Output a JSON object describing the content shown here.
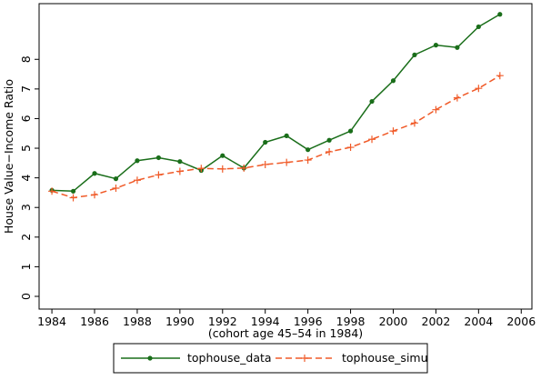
{
  "chart_data": {
    "type": "line",
    "y_label": "House Value−Income Ratio",
    "x_label": "(cohort age 45–54 in 1984)",
    "x": [
      1984,
      1985,
      1986,
      1987,
      1988,
      1989,
      1990,
      1991,
      1992,
      1993,
      1994,
      1995,
      1996,
      1997,
      1998,
      1999,
      2000,
      2001,
      2002,
      2003,
      2004,
      2005
    ],
    "series": [
      {
        "name": "tophouse_data",
        "color": "#1a6e1a",
        "marker": "circle",
        "dash": false,
        "values": [
          3.58,
          3.55,
          4.15,
          3.97,
          4.58,
          4.68,
          4.55,
          4.25,
          4.75,
          4.33,
          5.2,
          5.42,
          4.95,
          5.27,
          5.58,
          6.58,
          7.28,
          8.15,
          8.48,
          8.4,
          9.1,
          9.52
        ]
      },
      {
        "name": "tophouse_simu",
        "color": "#f05a28",
        "marker": "plus",
        "dash": true,
        "values": [
          3.55,
          3.33,
          3.43,
          3.65,
          3.92,
          4.1,
          4.22,
          4.32,
          4.3,
          4.33,
          4.45,
          4.52,
          4.6,
          4.88,
          5.03,
          5.3,
          5.58,
          5.85,
          6.3,
          6.7,
          7.02,
          7.45
        ]
      }
    ],
    "xlim": [
      1983.4,
      2006.5
    ],
    "xticks": [
      1984,
      1986,
      1988,
      1990,
      1992,
      1994,
      1996,
      1998,
      2000,
      2002,
      2004,
      2006
    ],
    "ylim": [
      -0.43,
      9.88
    ],
    "yticks": [
      0,
      1,
      2,
      3,
      4,
      5,
      6,
      7,
      8
    ],
    "legend": "bottom"
  }
}
